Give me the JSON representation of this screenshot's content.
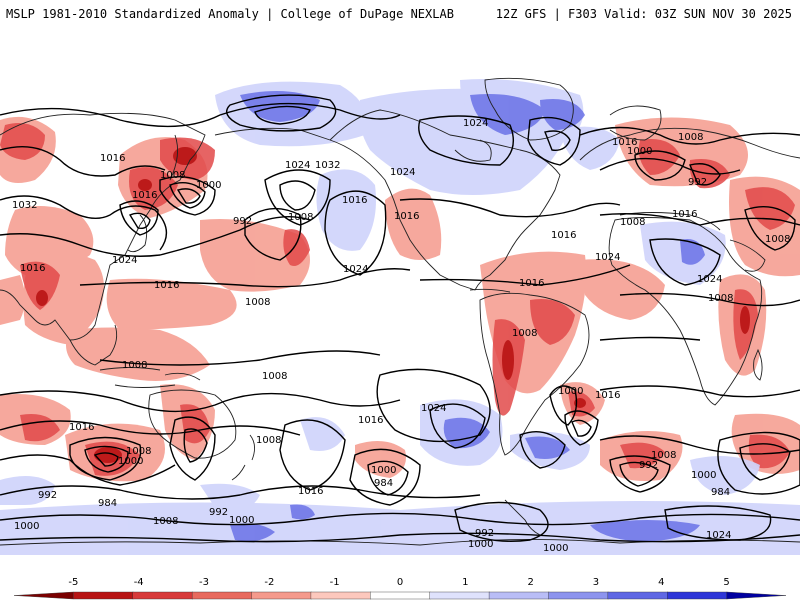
{
  "header": {
    "title": "MSLP 1981-2010 Standardized Anomaly | College of DuPage NEXLAB",
    "run_info": "12Z GFS | F303 Valid: 03Z SUN NOV 30 2025"
  },
  "colors": {
    "neg_strong": "#b81414",
    "neg_mid": "#e24a4a",
    "neg_light": "#f59a8c",
    "neg_faint": "#fcc8bd",
    "pos_faint": "#cfd3fb",
    "pos_light": "#a9aef3",
    "pos_mid": "#6a72e6",
    "pos_strong": "#3333dd",
    "contour": "#000000",
    "coast": "#222222"
  },
  "colorbar": {
    "ticks": [
      "-5",
      "-4",
      "-3",
      "-2",
      "-1",
      "0",
      "1",
      "2",
      "3",
      "4",
      "5"
    ],
    "stops": [
      "#7a0000",
      "#b81414",
      "#d83a3a",
      "#e86a5e",
      "#f59a8c",
      "#fcc8bd",
      "#ffffff",
      "#dfe2fc",
      "#b9bdf6",
      "#8d94ee",
      "#5f67e4",
      "#2e36d8",
      "#0000a0"
    ]
  },
  "contour_labels": [
    "1016",
    "1008",
    "1000",
    "1032",
    "1016",
    "992",
    "1024",
    "1016",
    "1008",
    "1024",
    "1032",
    "1024",
    "1016",
    "1008",
    "1016",
    "1024",
    "1024",
    "1000",
    "1016",
    "1008",
    "1008",
    "1016",
    "992",
    "1008",
    "1024",
    "1016",
    "1008",
    "1016",
    "1024",
    "1016",
    "1008",
    "1008",
    "1016",
    "1000",
    "1024",
    "1008",
    "1016",
    "1000",
    "992",
    "984",
    "1016",
    "1008",
    "1000",
    "992",
    "984",
    "1000",
    "1008",
    "1000",
    "992",
    "1000",
    "1000",
    "1008",
    "1016",
    "1016",
    "1024",
    "1008",
    "1000",
    "992",
    "984",
    "1016",
    "1008"
  ]
}
